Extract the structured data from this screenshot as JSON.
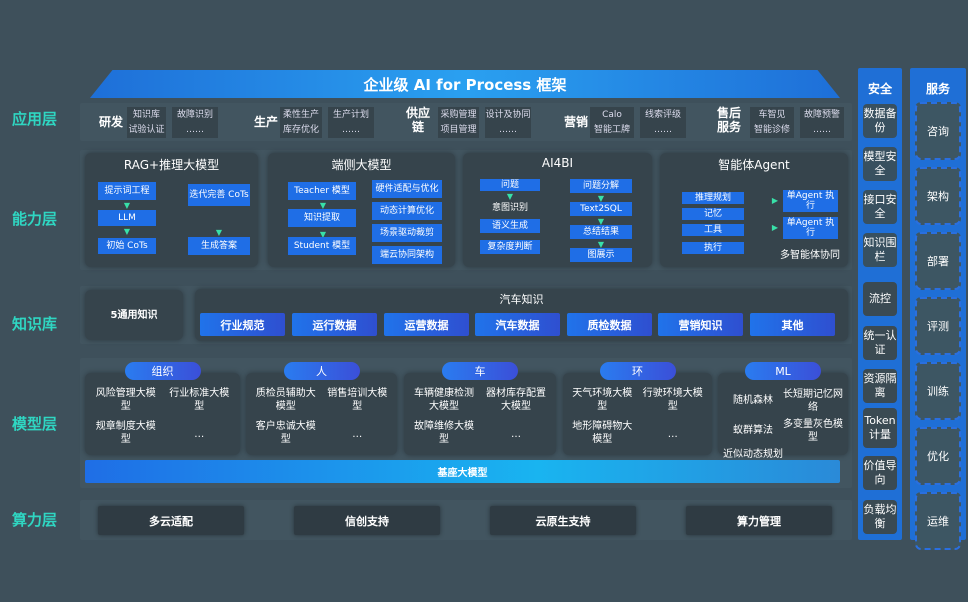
{
  "title": "企业级 AI for Process 框架",
  "layers": [
    "应用层",
    "能力层",
    "知识库",
    "模型层",
    "算力层"
  ],
  "app": [
    {
      "name": "研发",
      "items": [
        "知识库",
        "试验认证",
        "故障识别",
        "……"
      ]
    },
    {
      "name": "生产",
      "items": [
        "柔性生产",
        "库存优化",
        "生产计划",
        "……"
      ]
    },
    {
      "name": "供应链",
      "items": [
        "采购管理",
        "项目管理",
        "设计及协同",
        "……"
      ]
    },
    {
      "name": "营销",
      "items": [
        "Calo",
        "智能工牌",
        "线索评级",
        "……"
      ]
    },
    {
      "name": "售后服务",
      "items": [
        "车智见",
        "智能诊修",
        "故障预警",
        "……"
      ]
    }
  ],
  "capability": {
    "rag": {
      "title": "RAG+推理大模型",
      "left": [
        "提示词工程",
        "LLM",
        "初始 CoTs"
      ],
      "right": [
        "迭代完善 CoTs",
        "生成答案"
      ]
    },
    "edge": {
      "title": "端侧大模型",
      "left": [
        "Teacher 模型",
        "知识提取",
        "Student 模型"
      ],
      "right": [
        "硬件适配与优化",
        "动态计算优化",
        "场景驱动裁剪",
        "端云协同架构"
      ]
    },
    "ai4bi": {
      "title": "AI4BI",
      "left": [
        "问题",
        "意图识别",
        "语义生成",
        "复杂度判断"
      ],
      "right": [
        "问题分解",
        "Text2SQL",
        "总结结果",
        "图展示"
      ]
    },
    "agent": {
      "title": "智能体Agent",
      "left": [
        "推理规划",
        "记忆",
        "工具",
        "执行"
      ],
      "right": [
        "单Agent 执行",
        "单Agent 执行"
      ],
      "footer": "多智能体协同"
    }
  },
  "knowledge": {
    "general": "5通用知识",
    "auto_title": "汽车知识",
    "items": [
      "行业规范",
      "运行数据",
      "运营数据",
      "汽车数据",
      "质检数据",
      "营销知识",
      "其他"
    ]
  },
  "models": {
    "groups": [
      {
        "tag": "组织",
        "items": [
          "风险管理大模型",
          "行业标准大模型",
          "规章制度大模型",
          "…"
        ]
      },
      {
        "tag": "人",
        "items": [
          "质检员辅助大模型",
          "销售培训大模型",
          "客户忠诚大模型",
          "…"
        ]
      },
      {
        "tag": "车",
        "items": [
          "车辆健康检测大模型",
          "器材库存配置大模型",
          "故障维修大模型",
          "…"
        ]
      },
      {
        "tag": "环",
        "items": [
          "天气环境大模型",
          "行驶环境大模型",
          "地形障碍物大模型",
          "…"
        ]
      },
      {
        "tag": "ML",
        "items": [
          "随机森林",
          "长短期记忆网络",
          "蚁群算法",
          "多变量灰色模型",
          "近似动态规划",
          "…"
        ]
      }
    ],
    "base": "基座大模型"
  },
  "compute": [
    "多云适配",
    "信创支持",
    "云原生支持",
    "算力管理"
  ],
  "security": {
    "title": "安全",
    "items": [
      "数据备份",
      "模型安全",
      "接口安全",
      "知识围栏",
      "流控",
      "统一认证",
      "资源隔离",
      "Token计量",
      "价值导向",
      "负载均衡"
    ]
  },
  "service": {
    "title": "服务",
    "items": [
      "咨询",
      "架构",
      "部署",
      "评测",
      "训练",
      "优化",
      "运维"
    ]
  },
  "colors": {
    "background": "#3e505b",
    "accent": "#1f6ee6",
    "label": "#2fd6c2"
  }
}
